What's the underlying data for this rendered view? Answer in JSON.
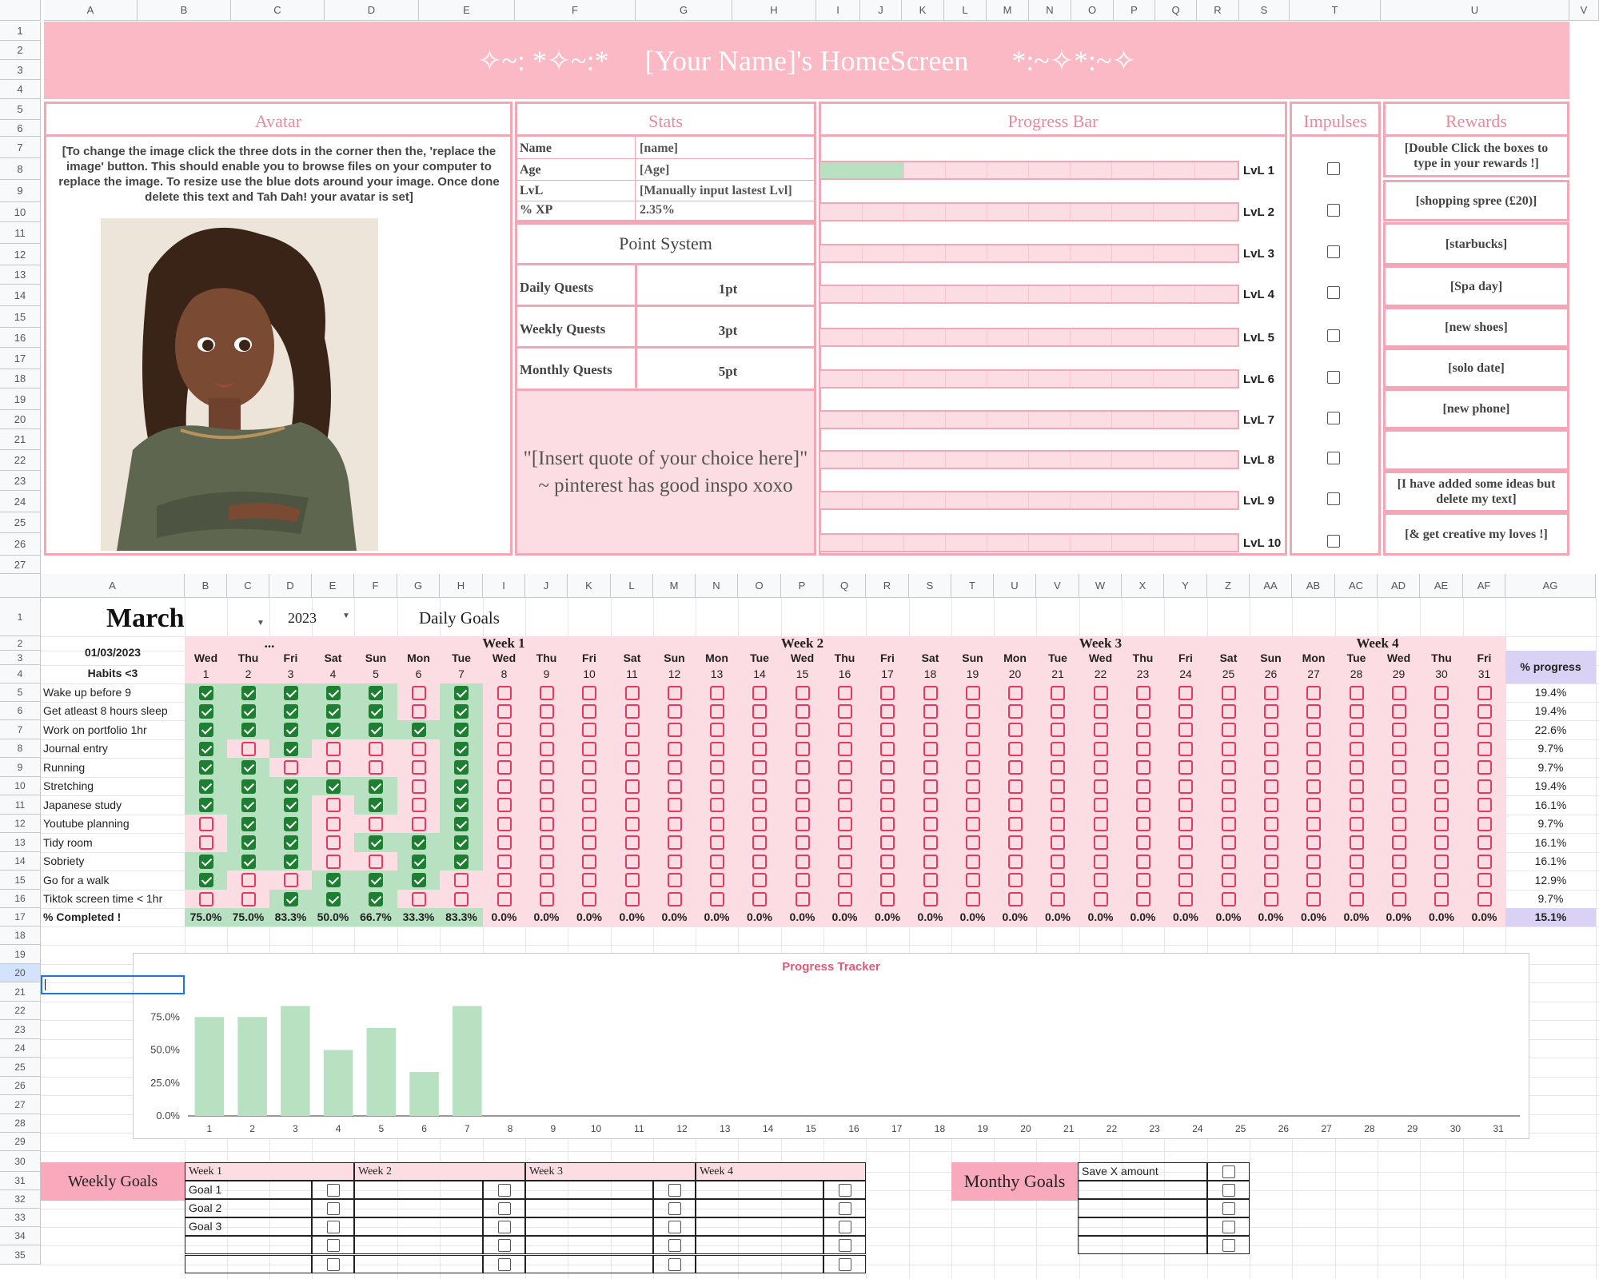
{
  "top": {
    "col_letters": [
      "A",
      "B",
      "C",
      "D",
      "E",
      "F",
      "G",
      "H",
      "I",
      "J",
      "K",
      "L",
      "M",
      "N",
      "O",
      "P",
      "Q",
      "R",
      "S",
      "T",
      "U",
      "V"
    ],
    "row_numbers": [
      "1",
      "2",
      "3",
      "4",
      "5",
      "6",
      "7",
      "8",
      "9",
      "10",
      "11",
      "12",
      "13",
      "14",
      "15",
      "16",
      "17",
      "18",
      "19",
      "20",
      "21",
      "22",
      "23",
      "24",
      "25",
      "26",
      "27"
    ],
    "banner": "✧~: *✧~:*     [Your Name]'s HomeScreen      *:~✧*:~✧",
    "headers": {
      "avatar": "Avatar",
      "stats": "Stats",
      "progress": "Progress Bar",
      "impulses": "Impulses",
      "rewards": "Rewards"
    },
    "avatar_note": "[To change the image click the three dots in the corner then the, 'replace the image' button. This should enable you to browse files on your computer to replace the image. To resize use the blue dots around your image. Once done delete this text and Tah Dah! your avatar is set]",
    "stats": [
      {
        "label": "Name",
        "value": "[name]"
      },
      {
        "label": "Age",
        "value": "[Age]"
      },
      {
        "label": "LvL",
        "value": "[Manually input lastest Lvl]"
      },
      {
        "label": "% XP",
        "value": "2.35%"
      }
    ],
    "point_system": {
      "title": "Point System",
      "rows": [
        {
          "label": "Daily Quests",
          "value": "1pt"
        },
        {
          "label": "Weekly Quests",
          "value": "3pt"
        },
        {
          "label": "Monthly Quests",
          "value": "5pt"
        }
      ]
    },
    "quote": "\"[Insert quote of your choice here]\" ~ pinterest has good inspo xoxo",
    "levels": [
      "LvL 1",
      "LvL 2",
      "LvL 3",
      "LvL 4",
      "LvL 5",
      "LvL 6",
      "LvL 7",
      "LvL 8",
      "LvL 9",
      "LvL 10"
    ],
    "level1_fill": 0.2,
    "rewards": [
      "[Double Click the boxes to type in your rewards !]",
      "[shopping spree (£20)]",
      "[starbucks]",
      "[Spa day]",
      "[new shoes]",
      "[solo date]",
      "[new phone]",
      "",
      "[I have added some ideas but delete my text]",
      "[& get creative my loves !]"
    ]
  },
  "habits": {
    "col_letters": [
      "A",
      "B",
      "C",
      "D",
      "E",
      "F",
      "G",
      "H",
      "I",
      "J",
      "K",
      "L",
      "M",
      "N",
      "O",
      "P",
      "Q",
      "R",
      "S",
      "T",
      "U",
      "V",
      "W",
      "X",
      "Y",
      "Z",
      "AA",
      "AB",
      "AC",
      "AD",
      "AE",
      "AF",
      "AG"
    ],
    "row_numbers": [
      "1",
      "2",
      "3",
      "4",
      "5",
      "6",
      "7",
      "8",
      "9",
      "10",
      "11",
      "12",
      "13",
      "14",
      "15",
      "16",
      "17",
      "18",
      "19",
      "20",
      "21",
      "22",
      "23",
      "24",
      "25",
      "26",
      "27",
      "28",
      "29",
      "30",
      "31",
      "32",
      "33",
      "34",
      "35"
    ],
    "month": "March",
    "year": "2023",
    "title": "Daily Goals",
    "date": "01/03/2023",
    "week_labels": [
      "...",
      "Week 1",
      "Week 2",
      "Week 3",
      "Week 4"
    ],
    "days": [
      "Wed",
      "Thu",
      "Fri",
      "Sat",
      "Sun",
      "Mon",
      "Tue",
      "Wed",
      "Thu",
      "Fri",
      "Sat",
      "Sun",
      "Mon",
      "Tue",
      "Wed",
      "Thu",
      "Fri",
      "Sat",
      "Sun",
      "Mon",
      "Tue",
      "Wed",
      "Thu",
      "Fri",
      "Sat",
      "Sun",
      "Mon",
      "Tue",
      "Wed",
      "Thu",
      "Fri"
    ],
    "dates": [
      "1",
      "2",
      "3",
      "4",
      "5",
      "6",
      "7",
      "8",
      "9",
      "10",
      "11",
      "12",
      "13",
      "14",
      "15",
      "16",
      "17",
      "18",
      "19",
      "20",
      "21",
      "22",
      "23",
      "24",
      "25",
      "26",
      "27",
      "28",
      "29",
      "30",
      "31"
    ],
    "habits_label": "Habits <3",
    "progress_label": "% progress",
    "rows": [
      {
        "name": "Wake up before 9",
        "checks": [
          1,
          1,
          1,
          1,
          1,
          0,
          1
        ],
        "pct": "19.4%"
      },
      {
        "name": "Get atleast 8 hours sleep",
        "checks": [
          1,
          1,
          1,
          1,
          1,
          0,
          1
        ],
        "pct": "19.4%"
      },
      {
        "name": "Work on portfolio 1hr",
        "checks": [
          1,
          1,
          1,
          1,
          1,
          1,
          1
        ],
        "pct": "22.6%"
      },
      {
        "name": "Journal entry",
        "checks": [
          1,
          0,
          1,
          0,
          0,
          0,
          1
        ],
        "pct": "9.7%"
      },
      {
        "name": "Running",
        "checks": [
          1,
          1,
          0,
          0,
          0,
          0,
          1
        ],
        "pct": "9.7%"
      },
      {
        "name": "Stretching",
        "checks": [
          1,
          1,
          1,
          1,
          1,
          0,
          1
        ],
        "pct": "19.4%"
      },
      {
        "name": "Japanese study",
        "checks": [
          1,
          1,
          1,
          0,
          1,
          0,
          1
        ],
        "pct": "16.1%"
      },
      {
        "name": "Youtube planning",
        "checks": [
          0,
          1,
          1,
          0,
          0,
          0,
          1
        ],
        "pct": "9.7%"
      },
      {
        "name": "Tidy room",
        "checks": [
          0,
          1,
          1,
          0,
          1,
          1,
          1
        ],
        "pct": "16.1%"
      },
      {
        "name": "Sobriety",
        "checks": [
          1,
          1,
          1,
          0,
          0,
          1,
          1
        ],
        "pct": "16.1%"
      },
      {
        "name": "Go for a walk",
        "checks": [
          1,
          0,
          0,
          1,
          1,
          1,
          0
        ],
        "pct": "12.9%"
      },
      {
        "name": "Tiktok screen time  < 1hr",
        "checks": [
          0,
          0,
          1,
          1,
          1,
          0,
          0
        ],
        "pct": "9.7%"
      }
    ],
    "completed_label": "% Completed !",
    "completed": [
      "75.0%",
      "75.0%",
      "83.3%",
      "50.0%",
      "66.7%",
      "33.3%",
      "83.3%",
      "0.0%",
      "0.0%",
      "0.0%",
      "0.0%",
      "0.0%",
      "0.0%",
      "0.0%",
      "0.0%",
      "0.0%",
      "0.0%",
      "0.0%",
      "0.0%",
      "0.0%",
      "0.0%",
      "0.0%",
      "0.0%",
      "0.0%",
      "0.0%",
      "0.0%",
      "0.0%",
      "0.0%",
      "0.0%",
      "0.0%",
      "0.0%"
    ],
    "total": "15.1%"
  },
  "chart_data": {
    "type": "bar",
    "title": "Progress Tracker",
    "categories": [
      "1",
      "2",
      "3",
      "4",
      "5",
      "6",
      "7",
      "8",
      "9",
      "10",
      "11",
      "12",
      "13",
      "14",
      "15",
      "16",
      "17",
      "18",
      "19",
      "20",
      "21",
      "22",
      "23",
      "24",
      "25",
      "26",
      "27",
      "28",
      "29",
      "30",
      "31"
    ],
    "values": [
      75.0,
      75.0,
      83.3,
      50.0,
      66.7,
      33.3,
      83.3,
      0,
      0,
      0,
      0,
      0,
      0,
      0,
      0,
      0,
      0,
      0,
      0,
      0,
      0,
      0,
      0,
      0,
      0,
      0,
      0,
      0,
      0,
      0,
      0
    ],
    "yticks": [
      "0.0%",
      "25.0%",
      "50.0%",
      "75.0%"
    ],
    "ylim": [
      0,
      100
    ],
    "color": "#b7e1c0"
  },
  "weekly": {
    "label": "Weekly Goals",
    "weeks": [
      "Week 1",
      "Week 2",
      "Week 3",
      "Week 4"
    ],
    "goals": [
      "Goal 1",
      "Goal 2",
      "Goal 3",
      "",
      ""
    ]
  },
  "monthly": {
    "label": "Monthy Goals",
    "items": [
      "Save X amount",
      "",
      "",
      "",
      ""
    ]
  },
  "colors": {
    "pink": "#fdd9e0",
    "pinkborder": "#f3a6b6",
    "pinktext": "#e88aa0",
    "green": "#b7e1c0",
    "purple": "#d9d2f5",
    "checkpink": "#e53960"
  }
}
